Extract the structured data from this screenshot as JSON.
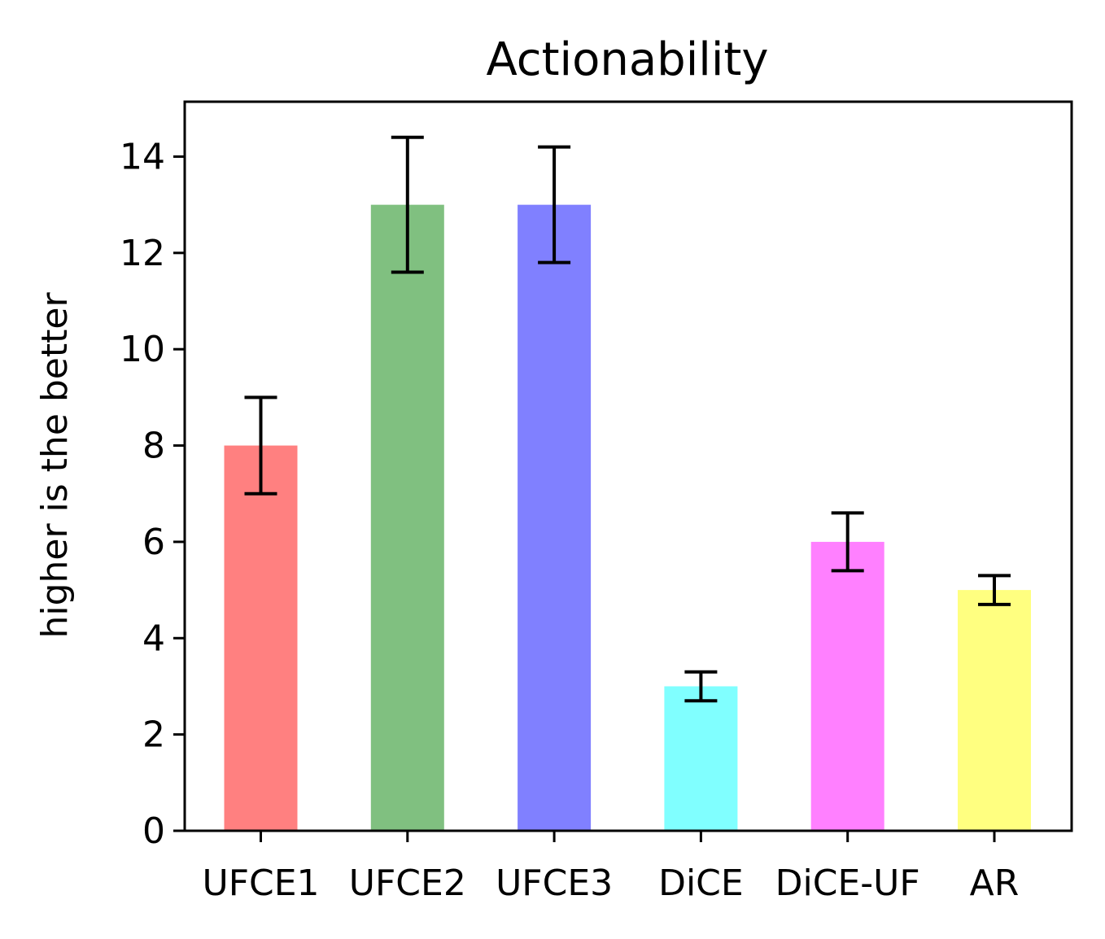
{
  "chart_data": {
    "type": "bar",
    "title": "Actionability",
    "xlabel": "",
    "ylabel": "higher is the better",
    "categories": [
      "UFCE1",
      "UFCE2",
      "UFCE3",
      "DiCE",
      "DiCE-UF",
      "AR"
    ],
    "values": [
      8,
      13,
      13,
      3,
      6,
      5
    ],
    "errors": [
      1.0,
      1.4,
      1.2,
      0.3,
      0.6,
      0.3
    ],
    "colors": [
      "#ff8080",
      "#80c080",
      "#8080ff",
      "#80ffff",
      "#ff80ff",
      "#ffff80"
    ],
    "ylim": [
      0,
      15.14
    ],
    "yticks": [
      "0",
      "2",
      "4",
      "6",
      "8",
      "10",
      "12",
      "14"
    ],
    "grid": false
  }
}
